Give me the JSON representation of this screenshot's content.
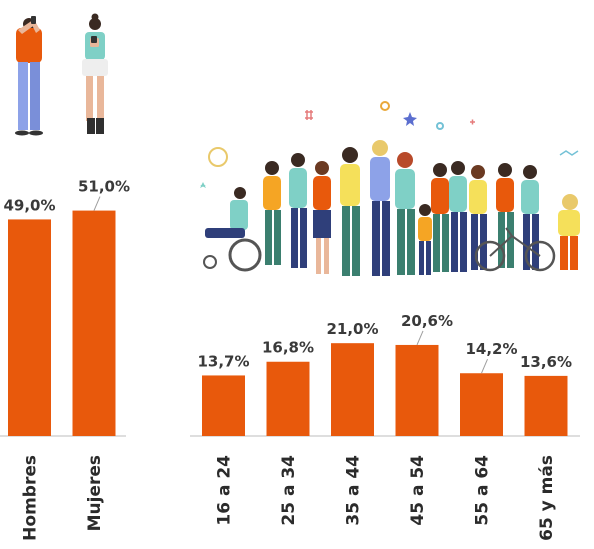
{
  "chart_data": [
    {
      "type": "bar",
      "categories": [
        "Hombres",
        "Mujeres"
      ],
      "values": [
        49.0,
        51.0
      ],
      "value_labels": [
        "49,0%",
        "51,0%"
      ],
      "bar_color": "#E8590C",
      "ylim": [
        0,
        55
      ],
      "grid": false,
      "legend": "none"
    },
    {
      "type": "bar",
      "categories": [
        "16 a 24",
        "25 a 34",
        "35 a 44",
        "45 a 54",
        "55 a 64",
        "65 y más"
      ],
      "values": [
        13.7,
        16.8,
        21.0,
        20.6,
        14.2,
        13.6
      ],
      "value_labels": [
        "13,7%",
        "16,8%",
        "21,0%",
        "20,6%",
        "14,2%",
        "13,6%"
      ],
      "bar_color": "#E8590C",
      "ylim": [
        0,
        45
      ],
      "grid": false,
      "legend": "none"
    }
  ],
  "illustrations": {
    "man_icon": "man-with-phone-illustration",
    "woman_icon": "woman-with-phone-illustration",
    "crowd_icon": "diverse-crowd-illustration"
  },
  "colors": {
    "bar": "#E8590C",
    "axis": "#bdbdbd",
    "label": "#3a3a3a"
  }
}
